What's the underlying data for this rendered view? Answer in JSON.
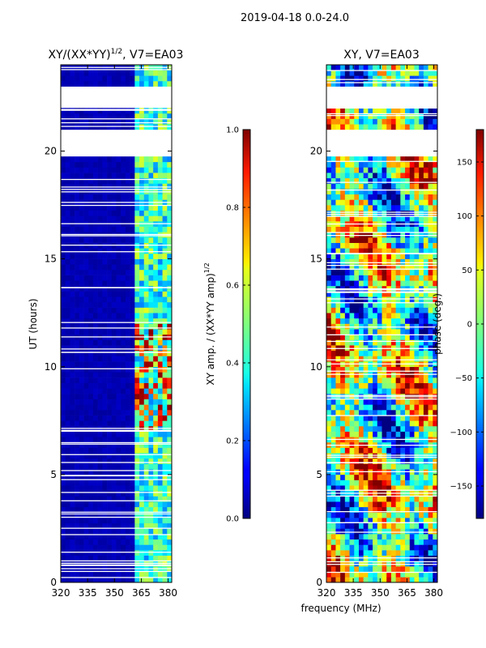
{
  "super_title": "2019-04-18 0.0-24.0",
  "chart_data": [
    {
      "type": "heatmap",
      "title": "XY/(XX*YY)^{1/2}, V7=EA03",
      "title_main": "XY/(XX*YY)",
      "title_sup": "1/2",
      "title_tail": ", V7=EA03",
      "xlabel": "",
      "ylabel": "UT (hours)",
      "xlim": [
        320,
        382
      ],
      "ylim": [
        0,
        24
      ],
      "x_ticks": [
        "320",
        "335",
        "350",
        "365",
        "380"
      ],
      "x_tick_values": [
        320,
        335,
        350,
        365,
        380
      ],
      "y_ticks": [
        "0",
        "5",
        "10",
        "15",
        "20"
      ],
      "y_tick_values": [
        0,
        5,
        10,
        15,
        20
      ],
      "data_gaps_hours": [
        [
          19.8,
          21.1
        ],
        [
          22.1,
          23.0
        ]
      ],
      "colorbar": {
        "label": "XY amp. / (XX*YY amp)^{1/2}",
        "label_main": "XY amp. / (XX*YY amp)",
        "label_sup": "1/2",
        "range": [
          0.0,
          1.0
        ],
        "ticks": [
          "0.0",
          "0.2",
          "0.4",
          "0.6",
          "0.8",
          "1.0"
        ],
        "tick_values": [
          0.0,
          0.2,
          0.4,
          0.6,
          0.8,
          1.0
        ],
        "colormap": "jet"
      }
    },
    {
      "type": "heatmap",
      "title": "XY, V7=EA03",
      "xlabel": "frequency (MHz)",
      "ylabel": "",
      "xlim": [
        320,
        382
      ],
      "ylim": [
        0,
        24
      ],
      "x_ticks": [
        "320",
        "335",
        "350",
        "365",
        "380"
      ],
      "x_tick_values": [
        320,
        335,
        350,
        365,
        380
      ],
      "y_ticks": [
        "0",
        "5",
        "10",
        "15",
        "20"
      ],
      "y_tick_values": [
        0,
        5,
        10,
        15,
        20
      ],
      "data_gaps_hours": [
        [
          19.8,
          21.1
        ],
        [
          22.1,
          23.0
        ]
      ],
      "colorbar": {
        "label": "phase (deg.)",
        "range": [
          -180,
          180
        ],
        "ticks": [
          "−150",
          "−100",
          "−50",
          "0",
          "50",
          "100",
          "150"
        ],
        "tick_values": [
          -150,
          -100,
          -50,
          0,
          50,
          100,
          150
        ],
        "colormap": "jet"
      }
    }
  ]
}
